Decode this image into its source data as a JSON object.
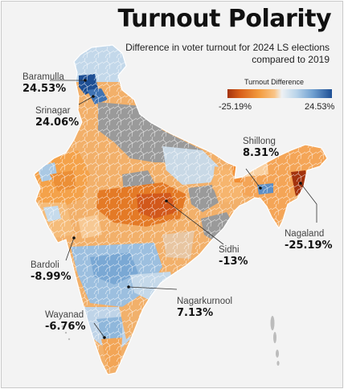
{
  "title": "Turnout Polarity",
  "subtitle": "Difference in voter turnout for 2024 LS elections compared to 2019",
  "legend": {
    "title": "Turnout Difference",
    "min_label": "-25.19%",
    "max_label": "24.53%",
    "min_value": -25.19,
    "max_value": 24.53,
    "colors": [
      "#a4330e",
      "#f29a3e",
      "#eef1f4",
      "#6f9fd0",
      "#1e4f94"
    ]
  },
  "no_data_color": "#9a9a9a",
  "callouts": [
    {
      "id": "baramulla",
      "name": "Baramulla",
      "value": "24.53%"
    },
    {
      "id": "srinagar",
      "name": "Srinagar",
      "value": "24.06%"
    },
    {
      "id": "shillong",
      "name": "Shillong",
      "value": "8.31%"
    },
    {
      "id": "nagaland",
      "name": "Nagaland",
      "value": "-25.19%"
    },
    {
      "id": "sidhi",
      "name": "Sidhi",
      "value": "-13%"
    },
    {
      "id": "bardoli",
      "name": "Bardoli",
      "value": "-8.99%"
    },
    {
      "id": "nagarkurnool",
      "name": "Nagarkurnool",
      "value": "7.13%"
    },
    {
      "id": "wayanad",
      "name": "Wayanad",
      "value": "-6.76%"
    }
  ]
}
